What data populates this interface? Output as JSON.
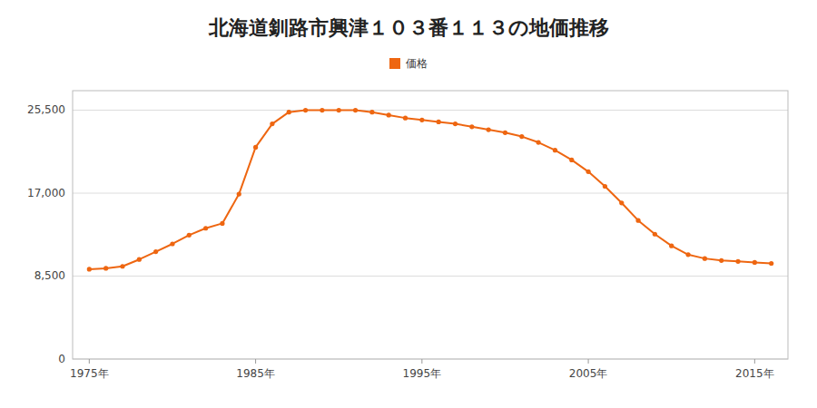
{
  "chart_data": {
    "type": "line",
    "title": "北海道釧路市興津１０３番１１３の地価推移",
    "x": [
      1975,
      1976,
      1977,
      1978,
      1979,
      1980,
      1981,
      1982,
      1983,
      1984,
      1985,
      1986,
      1987,
      1988,
      1989,
      1990,
      1991,
      1992,
      1993,
      1994,
      1995,
      1996,
      1997,
      1998,
      1999,
      2000,
      2001,
      2002,
      2003,
      2004,
      2005,
      2006,
      2007,
      2008,
      2009,
      2010,
      2011,
      2012,
      2013,
      2014,
      2015,
      2016
    ],
    "series": [
      {
        "name": "価格",
        "color": "#ee6611",
        "marker": "circle",
        "line_style": "solid",
        "values": [
          9200,
          9300,
          9500,
          10200,
          11000,
          11800,
          12700,
          13400,
          13900,
          16900,
          21700,
          24100,
          25300,
          25500,
          25500,
          25500,
          25500,
          25300,
          25000,
          24700,
          24500,
          24300,
          24100,
          23800,
          23500,
          23200,
          22800,
          22200,
          21400,
          20400,
          19200,
          17700,
          16000,
          14200,
          12800,
          11600,
          10700,
          10300,
          10100,
          10000,
          9900,
          9800
        ]
      }
    ],
    "xlim": [
      1974,
      2017
    ],
    "xticks": [
      {
        "value": 1975,
        "label": "1975年"
      },
      {
        "value": 1985,
        "label": "1985年"
      },
      {
        "value": 1995,
        "label": "1995年"
      },
      {
        "value": 2005,
        "label": "2005年"
      },
      {
        "value": 2015,
        "label": "2015年"
      }
    ],
    "ylim": [
      0,
      27500
    ],
    "yticks": [
      0,
      {
        "value": 8500,
        "label": "8,500"
      },
      {
        "value": 17000,
        "label": "17,000"
      },
      {
        "value": 25500,
        "label": "25,500"
      }
    ],
    "grid": true,
    "legend": "top"
  }
}
